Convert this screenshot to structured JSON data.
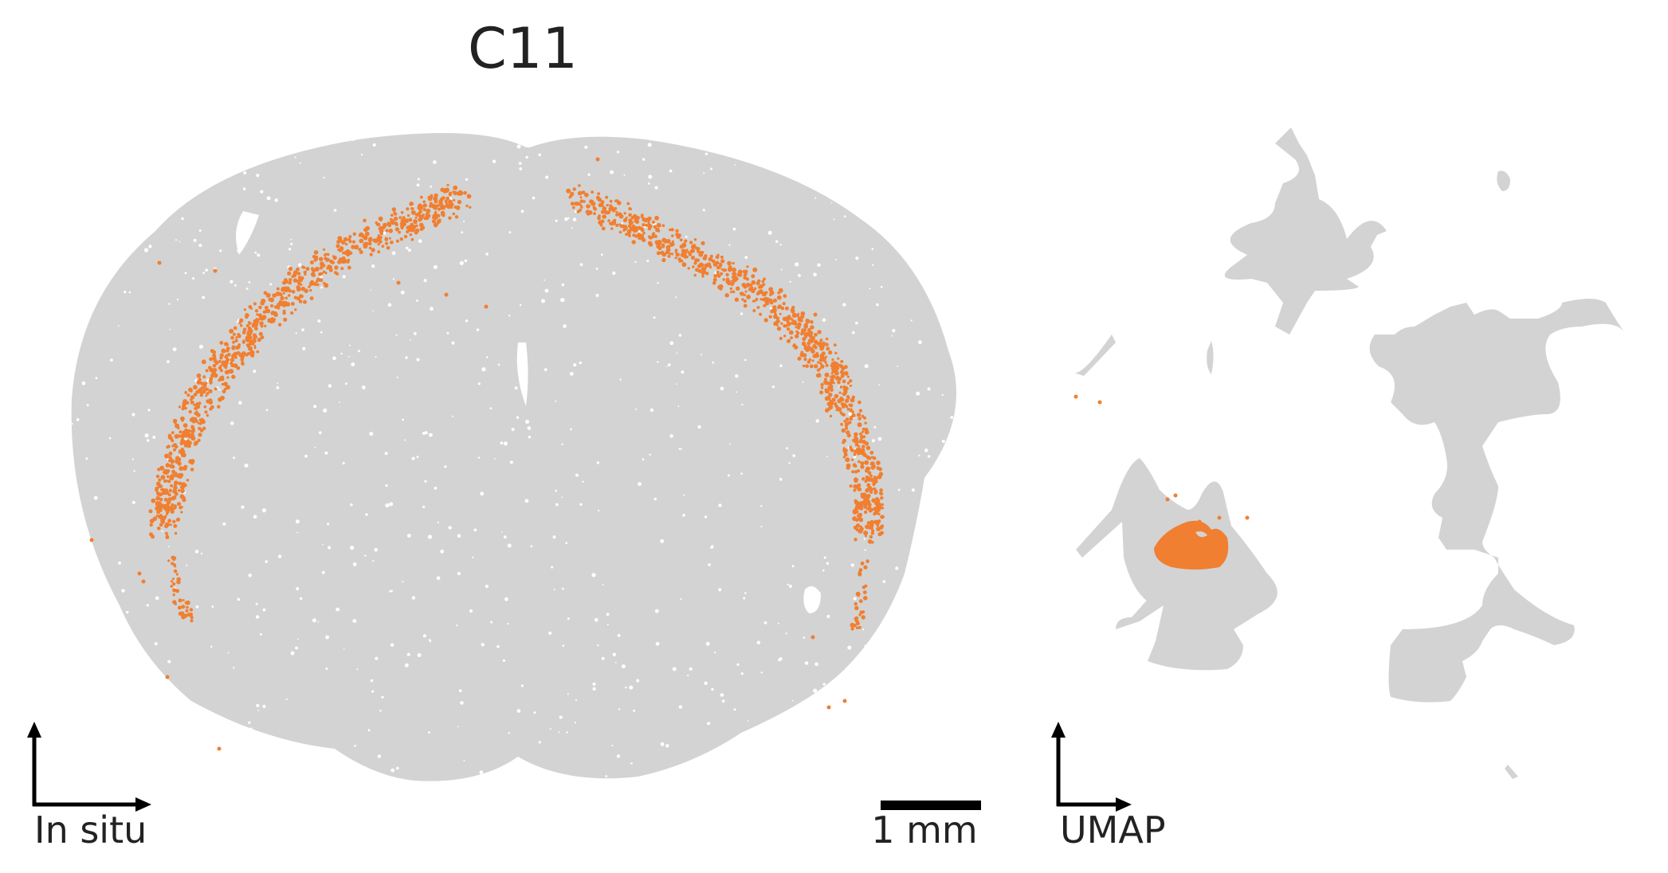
{
  "title": "C11",
  "colors": {
    "background_cells": "#d3d3d3",
    "highlight_cells": "#f07f31",
    "axis": "#000000",
    "text": "#222222"
  },
  "panels": {
    "in_situ": {
      "axis_label": "In situ",
      "scale_bar_label": "1 mm"
    },
    "umap": {
      "axis_label": "UMAP"
    }
  },
  "chart_data": [
    {
      "type": "scatter",
      "panel": "in_situ",
      "title": "C11",
      "description_of_content": "coronal brain section, all cells in grey",
      "highlighted_cluster": "C11",
      "highlight_region": "cortical band (arc) in both hemispheres",
      "axis_label": "In situ",
      "scale_bar": "1 mm",
      "grid": false
    },
    {
      "type": "scatter",
      "panel": "umap",
      "highlighted_cluster": "C11",
      "highlight_region": "lower part of left-middle island",
      "axis_label": "UMAP",
      "grid": false
    }
  ]
}
